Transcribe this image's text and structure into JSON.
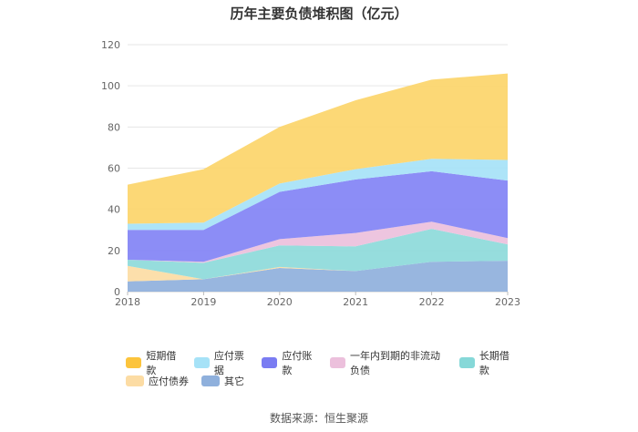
{
  "chart_data": {
    "type": "area",
    "stacked": true,
    "title": "历年主要负债堆积图（亿元）",
    "categories": [
      "2018",
      "2019",
      "2020",
      "2021",
      "2022",
      "2023"
    ],
    "ylim": [
      0,
      120
    ],
    "yticks": [
      0,
      20,
      40,
      60,
      80,
      100,
      120
    ],
    "grid": true,
    "legend_position": "bottom",
    "series": [
      {
        "name": "其它",
        "color": "#8fb0dc",
        "values": [
          5,
          6,
          11.5,
          10,
          14.5,
          15
        ]
      },
      {
        "name": "应付债券",
        "color": "#fcdca4",
        "values": [
          7.5,
          0,
          0.5,
          0,
          0,
          0
        ]
      },
      {
        "name": "长期借款",
        "color": "#8ddada",
        "values": [
          3,
          8,
          10.5,
          12,
          16,
          8
        ]
      },
      {
        "name": "一年内到期的非流动负债",
        "color": "#ecc0dc",
        "values": [
          0,
          0.5,
          3,
          6.5,
          3.5,
          3
        ]
      },
      {
        "name": "应付账款",
        "color": "#8283f5",
        "values": [
          14.5,
          15.5,
          23,
          26,
          24.5,
          28
        ]
      },
      {
        "name": "应付票据",
        "color": "#a6e2f7",
        "values": [
          3,
          3.5,
          4,
          5,
          6,
          10
        ]
      },
      {
        "name": "短期借款",
        "color": "#fcd56a",
        "values": [
          19,
          26,
          27.5,
          33.5,
          38.5,
          42
        ]
      }
    ]
  },
  "legend": {
    "rows": [
      [
        {
          "label": "短期借款",
          "color": "#fcc43c"
        },
        {
          "label": "应付票据",
          "color": "#a6e2f7"
        },
        {
          "label": "应付账款",
          "color": "#7a7cf2"
        },
        {
          "label": "一年内到期的非流动负债",
          "color": "#ecc0dc"
        },
        {
          "label": "长期借款",
          "color": "#86d8d8"
        }
      ],
      [
        {
          "label": "应付债券",
          "color": "#fcdca4"
        },
        {
          "label": "其它",
          "color": "#8fb0dc"
        }
      ]
    ]
  },
  "source": "数据来源：恒生聚源"
}
